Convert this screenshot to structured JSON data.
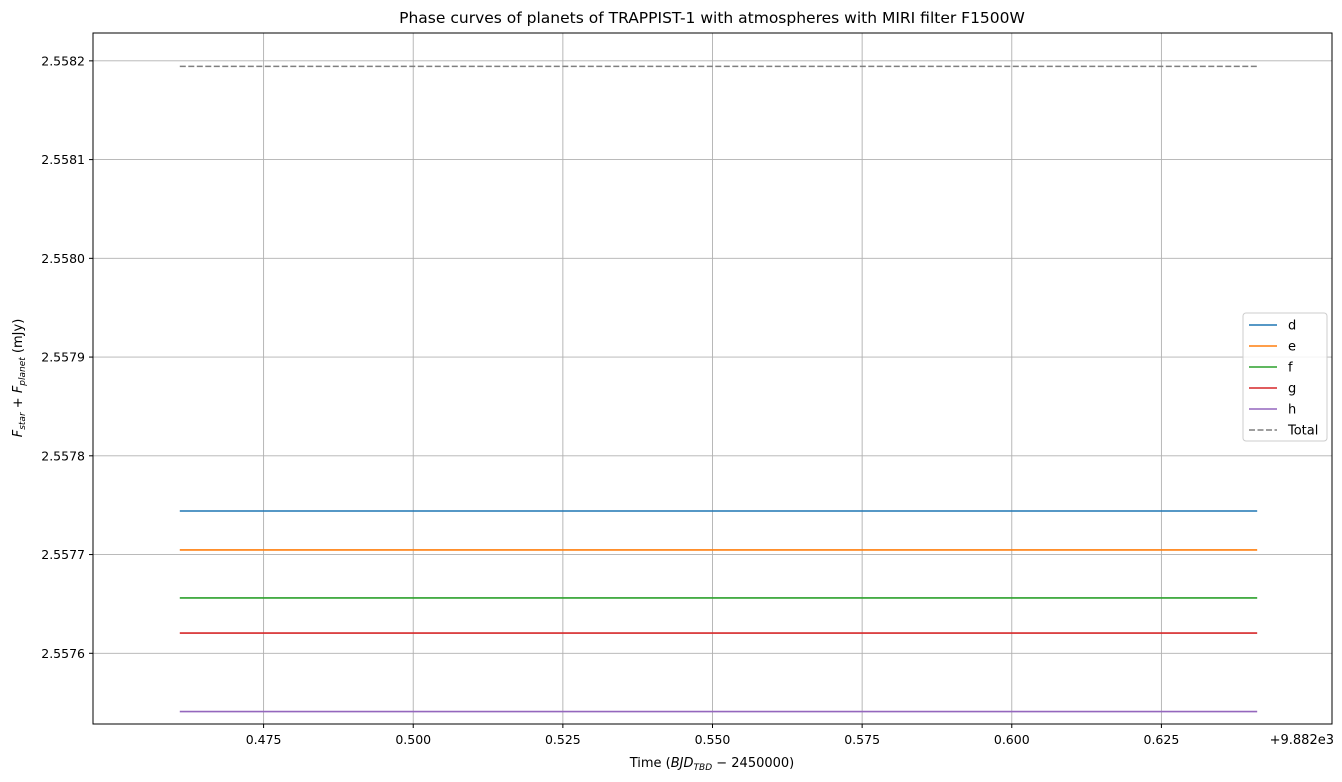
{
  "chart_data": {
    "type": "line",
    "title": "Phase curves of planets of TRAPPIST-1 with atmospheres with MIRI filter F1500W",
    "xlabel": {
      "prefix": "Time (",
      "math": "BJD",
      "sub": "TBD",
      "suffix": " − 2450000)"
    },
    "ylabel": {
      "f1": "F",
      "s1": "star",
      "mid": " + ",
      "f2": "F",
      "s2": "planet",
      "suffix": " (mJy)"
    },
    "x_offset_label": "+9.882e3",
    "xlim": [
      0.4465,
      0.6535
    ],
    "ylim": [
      2.5575284,
      2.5582282
    ],
    "x_range": [
      0.461,
      0.641
    ],
    "xticks": [
      0.475,
      0.5,
      0.525,
      0.55,
      0.575,
      0.6,
      0.625
    ],
    "xtick_labels": [
      "0.475",
      "0.500",
      "0.525",
      "0.550",
      "0.575",
      "0.600",
      "0.625"
    ],
    "yticks": [
      2.5576,
      2.5577,
      2.5578,
      2.5579,
      2.558,
      2.5581,
      2.5582
    ],
    "ytick_labels": [
      "2.5576",
      "2.5577",
      "2.5578",
      "2.5579",
      "2.5580",
      "2.5581",
      "2.5582"
    ],
    "grid": true,
    "legend_position": "center-right",
    "series": [
      {
        "name": "d",
        "y": 2.5577441,
        "color": "#1f77b4",
        "style": "solid"
      },
      {
        "name": "e",
        "y": 2.5577047,
        "color": "#ff7f0e",
        "style": "solid"
      },
      {
        "name": "f",
        "y": 2.5576561,
        "color": "#2ca02c",
        "style": "solid"
      },
      {
        "name": "g",
        "y": 2.5576205,
        "color": "#d62728",
        "style": "solid"
      },
      {
        "name": "h",
        "y": 2.557541,
        "color": "#9467bd",
        "style": "solid"
      },
      {
        "name": "Total",
        "y": 2.5581944,
        "color": "#7f7f7f",
        "style": "dashed"
      }
    ]
  }
}
